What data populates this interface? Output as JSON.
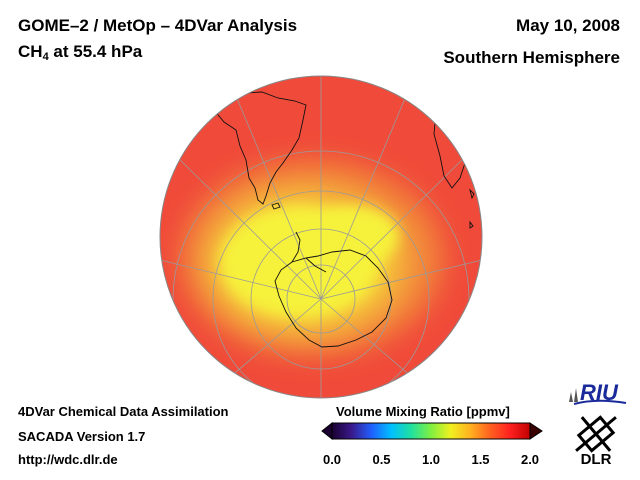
{
  "header": {
    "title_line1": "GOME–2 / MetOp – 4DVar Analysis",
    "title_species": "CH",
    "title_species_sub": "4",
    "title_level": " at 55.4 hPa",
    "date": "May 10, 2008",
    "region": "Southern Hemisphere"
  },
  "footer": {
    "line1": "4DVar Chemical Data Assimilation",
    "line2": "SACADA Version 1.7",
    "line3": "http://wdc.dlr.de"
  },
  "colorbar": {
    "title": "Volume Mixing Ratio [ppmv]",
    "ticks": [
      "0.0",
      "0.5",
      "1.0",
      "1.5",
      "2.0"
    ],
    "range": [
      0.0,
      2.0
    ],
    "colors": [
      "#1a0030",
      "#3a1a8c",
      "#2060ff",
      "#00c0ff",
      "#20e0a0",
      "#80f040",
      "#f0f020",
      "#ffb020",
      "#ff6020",
      "#ff2020",
      "#c00000"
    ]
  },
  "map": {
    "projection": "orthographic",
    "hemisphere": "south",
    "ocean_color": "#f04a3a",
    "anomaly_colors": [
      "#f6f23a",
      "#f6c83a",
      "#f28a3a"
    ]
  },
  "logos": {
    "riu_text": "RIU",
    "dlr_text": "DLR"
  }
}
